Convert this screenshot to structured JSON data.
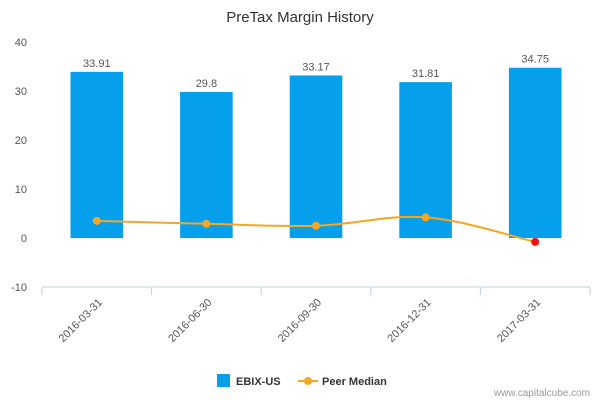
{
  "chart_data": {
    "type": "bar",
    "title": "PreTax Margin History",
    "categories": [
      "2016-03-31",
      "2016-06-30",
      "2016-09-30",
      "2016-12-31",
      "2017-03-31"
    ],
    "ylim": [
      -10,
      40
    ],
    "yticks": [
      -10,
      0,
      10,
      20,
      30,
      40
    ],
    "grid": false,
    "legend_position": "bottom",
    "series": [
      {
        "name": "EBIX-US",
        "type": "bar",
        "color": "#069fec",
        "values": [
          33.91,
          29.8,
          33.17,
          31.81,
          34.75
        ],
        "labels": [
          "33.91",
          "29.8",
          "33.17",
          "31.81",
          "34.75"
        ]
      },
      {
        "name": "Peer Median",
        "type": "line",
        "color": "#f5a623",
        "negative_point_color": "#ee1111",
        "values": [
          3.5,
          2.9,
          2.5,
          4.2,
          -0.8
        ]
      }
    ]
  },
  "watermark": "www.capitalcube.com"
}
